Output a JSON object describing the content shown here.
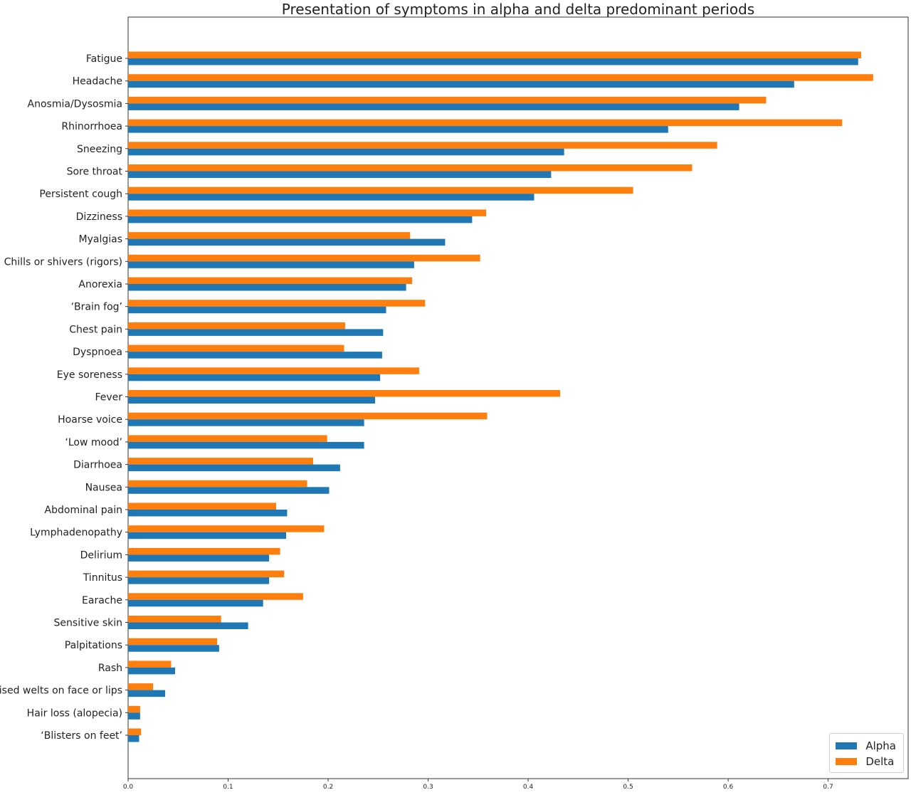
{
  "chart_data": {
    "type": "bar",
    "orientation": "horizontal",
    "title": "Presentation of symptoms in alpha and delta predominant periods",
    "xlabel": "",
    "ylabel": "",
    "xlim": [
      0,
      0.78
    ],
    "xticks": [
      "0.0",
      "0.1",
      "0.2",
      "0.3",
      "0.4",
      "0.5",
      "0.6",
      "0.7"
    ],
    "grid": false,
    "legend_position": "lower-right",
    "categories": [
      "Fatigue",
      "Headache",
      "Anosmia/Dysosmia",
      "Rhinorrhoea",
      "Sneezing",
      "Sore throat",
      "Persistent cough",
      "Dizziness",
      "Myalgias",
      "Chills or shivers (rigors)",
      "Anorexia",
      "‘Brain fog’",
      "Chest pain",
      "Dyspnoea",
      "Eye soreness",
      "Fever",
      "Hoarse voice",
      "‘Low mood’",
      "Diarrhoea",
      "Nausea",
      "Abdominal pain",
      "Lymphadenopathy",
      "Delirium",
      "Tinnitus",
      "Earache",
      "Sensitive skin",
      "Palpitations",
      "Rash",
      "Raised welts on face or lips",
      "Hair loss (alopecia)",
      "‘Blisters on feet’"
    ],
    "series": [
      {
        "name": "Alpha",
        "color": "#1f77b4",
        "values": [
          0.73,
          0.666,
          0.611,
          0.54,
          0.436,
          0.423,
          0.406,
          0.344,
          0.317,
          0.286,
          0.278,
          0.258,
          0.255,
          0.254,
          0.252,
          0.247,
          0.236,
          0.236,
          0.212,
          0.201,
          0.159,
          0.158,
          0.141,
          0.141,
          0.135,
          0.12,
          0.091,
          0.047,
          0.037,
          0.012,
          0.011
        ]
      },
      {
        "name": "Delta",
        "color": "#ff7f0e",
        "values": [
          0.733,
          0.745,
          0.638,
          0.714,
          0.589,
          0.564,
          0.505,
          0.358,
          0.282,
          0.352,
          0.284,
          0.297,
          0.217,
          0.216,
          0.291,
          0.432,
          0.359,
          0.199,
          0.185,
          0.179,
          0.148,
          0.196,
          0.152,
          0.156,
          0.175,
          0.093,
          0.089,
          0.043,
          0.025,
          0.012,
          0.013
        ]
      }
    ]
  }
}
